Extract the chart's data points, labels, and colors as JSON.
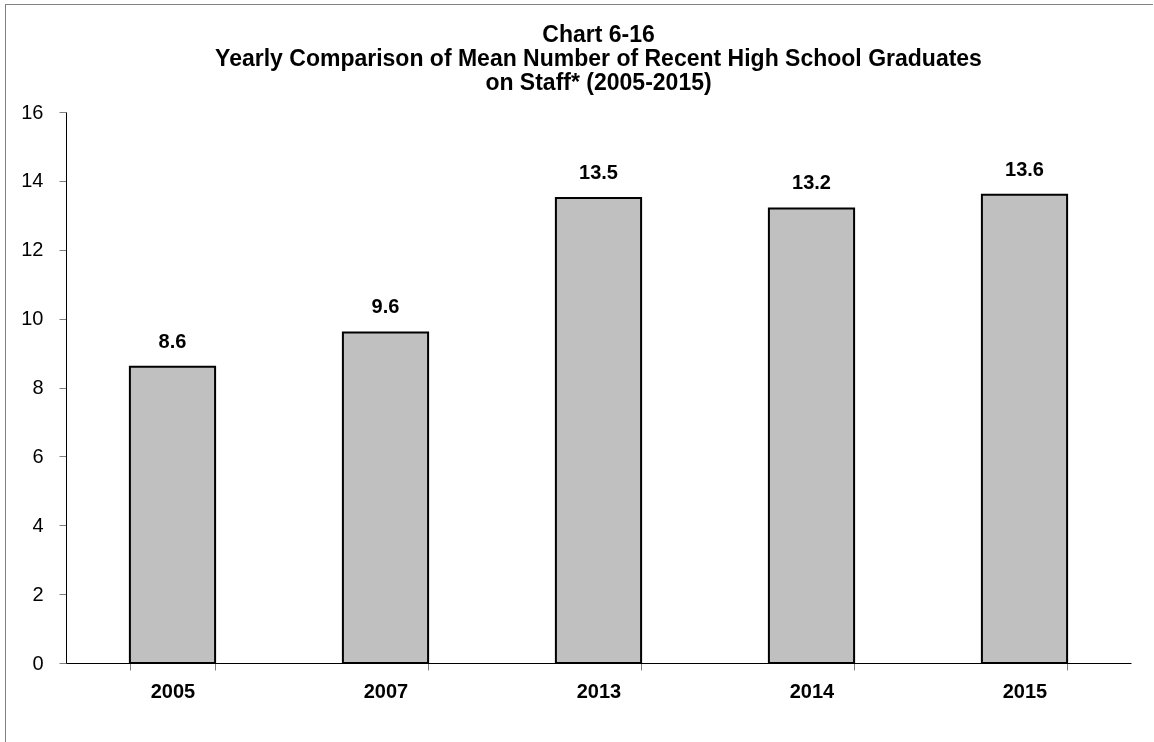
{
  "chart_data": {
    "type": "bar",
    "title": "Chart 6-16\nYearly Comparison of Mean Number of Recent High School Graduates\non Staff* (2005-2015)",
    "categories": [
      "2005",
      "2007",
      "2013",
      "2014",
      "2015"
    ],
    "values": [
      8.6,
      9.6,
      13.5,
      13.2,
      13.6
    ],
    "color": "#c0c0c0",
    "ylim": [
      0,
      16
    ],
    "yticks": [
      0,
      2,
      4,
      6,
      8,
      10,
      12,
      14,
      16
    ],
    "data_labels": true
  }
}
